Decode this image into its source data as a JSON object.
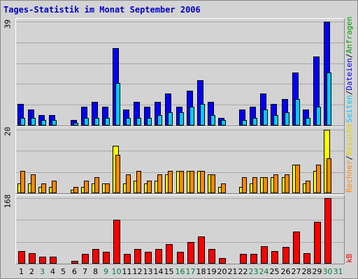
{
  "title": "Tages-Statistik im Monat September 2006",
  "colors": {
    "anfragen": "#00cc00",
    "dateien": "#0000ff",
    "seiten": "#00ccff",
    "besuche": "#ffff00",
    "rechner": "#ff8800",
    "kb": "#ff0000",
    "weekday_label": "#000000",
    "weekend_label": "#008040"
  },
  "right_labels": {
    "anfragen": "Anfragen",
    "dateien": "Dateien",
    "seiten": "Seiten",
    "besuche": "Besuche",
    "rechner": "Rechner",
    "kb": "kB",
    "sep": "/"
  },
  "chart_data": [
    {
      "type": "bar",
      "title": "Tages-Statistik im Monat September 2006",
      "ymax_label": "39",
      "ylim": [
        0,
        39
      ],
      "categories": [
        "1",
        "2",
        "3",
        "4",
        "5",
        "6",
        "7",
        "8",
        "9",
        "10",
        "11",
        "12",
        "13",
        "14",
        "15",
        "16",
        "17",
        "18",
        "19",
        "20",
        "21",
        "22",
        "23",
        "24",
        "25",
        "26",
        "27",
        "28",
        "29",
        "30",
        "31"
      ],
      "series": [
        {
          "name": "Anfragen",
          "values": [
            8,
            6,
            4,
            4,
            0,
            2,
            7,
            9,
            7,
            29,
            6,
            9,
            7,
            9,
            12,
            7,
            13,
            17,
            9,
            3,
            0,
            6,
            7,
            12,
            8,
            10,
            20,
            6,
            26,
            39,
            0
          ]
        },
        {
          "name": "Dateien",
          "values": [
            8,
            6,
            4,
            4,
            0,
            2,
            7,
            9,
            7,
            29,
            6,
            9,
            7,
            9,
            12,
            7,
            13,
            17,
            9,
            3,
            0,
            6,
            7,
            12,
            8,
            10,
            20,
            6,
            26,
            39,
            0
          ]
        },
        {
          "name": "Seiten",
          "values": [
            3,
            3,
            2,
            2,
            0,
            1,
            3,
            3,
            3,
            16,
            3,
            3,
            3,
            4,
            5,
            5,
            7,
            8,
            4,
            2,
            0,
            2,
            3,
            6,
            4,
            5,
            10,
            3,
            7,
            20,
            0
          ]
        }
      ]
    },
    {
      "type": "bar",
      "ymax_label": "20",
      "ylim": [
        0,
        20
      ],
      "categories": [
        "1",
        "2",
        "3",
        "4",
        "5",
        "6",
        "7",
        "8",
        "9",
        "10",
        "11",
        "12",
        "13",
        "14",
        "15",
        "16",
        "17",
        "18",
        "19",
        "20",
        "21",
        "22",
        "23",
        "24",
        "25",
        "26",
        "27",
        "28",
        "29",
        "30",
        "31"
      ],
      "series": [
        {
          "name": "Besuche",
          "values": [
            3,
            3,
            2,
            2,
            0,
            1,
            2,
            3,
            3,
            15,
            3,
            4,
            3,
            4,
            6,
            7,
            7,
            7,
            6,
            2,
            0,
            2,
            3,
            5,
            5,
            5,
            9,
            3,
            7,
            20,
            0
          ]
        },
        {
          "name": "Rechner",
          "values": [
            7,
            6,
            3,
            4,
            0,
            2,
            4,
            5,
            3,
            12,
            6,
            7,
            4,
            6,
            7,
            7,
            7,
            7,
            6,
            3,
            0,
            5,
            5,
            5,
            6,
            6,
            9,
            4,
            9,
            11,
            0
          ]
        }
      ]
    },
    {
      "type": "bar",
      "ymax_label": "168",
      "ylim": [
        0,
        168
      ],
      "categories": [
        "1",
        "2",
        "3",
        "4",
        "5",
        "6",
        "7",
        "8",
        "9",
        "10",
        "11",
        "12",
        "13",
        "14",
        "15",
        "16",
        "17",
        "18",
        "19",
        "20",
        "21",
        "22",
        "23",
        "24",
        "25",
        "26",
        "27",
        "28",
        "29",
        "30",
        "31"
      ],
      "series": [
        {
          "name": "kB",
          "values": [
            32,
            26,
            18,
            18,
            0,
            8,
            25,
            38,
            30,
            113,
            25,
            38,
            30,
            38,
            50,
            30,
            55,
            70,
            38,
            15,
            0,
            25,
            25,
            45,
            32,
            42,
            83,
            26,
            107,
            168,
            0
          ]
        }
      ]
    }
  ],
  "days": [
    {
      "label": "1",
      "weekend": false
    },
    {
      "label": "2",
      "weekend": false
    },
    {
      "label": "3",
      "weekend": true
    },
    {
      "label": "4",
      "weekend": false
    },
    {
      "label": "5",
      "weekend": false
    },
    {
      "label": "6",
      "weekend": false
    },
    {
      "label": "7",
      "weekend": false
    },
    {
      "label": "8",
      "weekend": false
    },
    {
      "label": "9",
      "weekend": true
    },
    {
      "label": "10",
      "weekend": true
    },
    {
      "label": "11",
      "weekend": false
    },
    {
      "label": "12",
      "weekend": false
    },
    {
      "label": "13",
      "weekend": false
    },
    {
      "label": "14",
      "weekend": false
    },
    {
      "label": "15",
      "weekend": false
    },
    {
      "label": "16",
      "weekend": true
    },
    {
      "label": "17",
      "weekend": true
    },
    {
      "label": "18",
      "weekend": false
    },
    {
      "label": "19",
      "weekend": false
    },
    {
      "label": "20",
      "weekend": false
    },
    {
      "label": "21",
      "weekend": false
    },
    {
      "label": "22",
      "weekend": false
    },
    {
      "label": "23",
      "weekend": true
    },
    {
      "label": "24",
      "weekend": true
    },
    {
      "label": "25",
      "weekend": false
    },
    {
      "label": "26",
      "weekend": false
    },
    {
      "label": "27",
      "weekend": false
    },
    {
      "label": "28",
      "weekend": false
    },
    {
      "label": "29",
      "weekend": false
    },
    {
      "label": "30",
      "weekend": true
    },
    {
      "label": "31",
      "weekend": true
    }
  ]
}
